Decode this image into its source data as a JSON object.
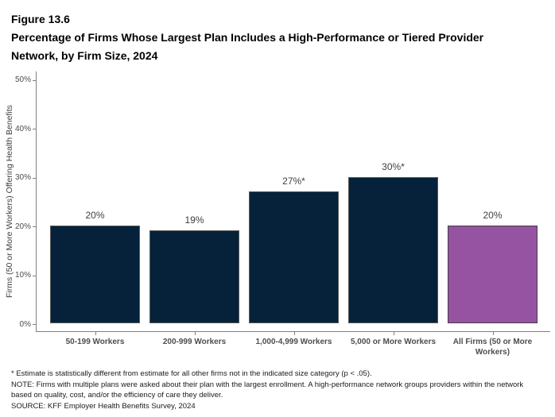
{
  "header": {
    "figure_label": "Figure 13.6",
    "title": "Percentage of Firms Whose Largest Plan Includes a High-Performance or Tiered Provider Network, by Firm Size, 2024"
  },
  "chart_data": {
    "type": "bar",
    "title": "Percentage of Firms Whose Largest Plan Includes a High-Performance or Tiered Provider Network, by Firm Size, 2024",
    "categories": [
      "50-199 Workers",
      "200-999 Workers",
      "1,000-4,999 Workers",
      "5,000 or More Workers",
      "All Firms (50 or More Workers)"
    ],
    "values": [
      20,
      19,
      27,
      30,
      20
    ],
    "bar_labels": [
      "20%",
      "19%",
      "27%*",
      "30%*",
      "20%"
    ],
    "xlabel": "",
    "ylabel": "Firms (50 or More Workers) Offering Health Benefits",
    "ylim": [
      0,
      50
    ],
    "ytick_values": [
      0,
      10,
      20,
      30,
      40,
      50
    ],
    "ytick_labels": [
      "0%",
      "10%",
      "20%",
      "30%",
      "40%",
      "50%"
    ],
    "grid": false,
    "legend": false,
    "bar_fill_colors": [
      "#05223a",
      "#05223a",
      "#05223a",
      "#05223a",
      "#9553a1"
    ],
    "bar_border_colors": [
      "#595959",
      "#595959",
      "#595959",
      "#595959",
      "#404040"
    ]
  },
  "footnotes": [
    "* Estimate is statistically different from estimate for all other firms not in the indicated size category (p < .05).",
    "NOTE: Firms with multiple plans were asked about their plan with the largest enrollment.  A high-performance network groups providers within the network based on quality, cost, and/or the efficiency of care they deliver.",
    "SOURCE: KFF Employer Health Benefits Survey, 2024"
  ],
  "colors": {
    "axis": "#808080",
    "tick_label": "#4d4d4d",
    "value_label": "#404040",
    "navy": "#05223a",
    "purple": "#9553a1"
  }
}
